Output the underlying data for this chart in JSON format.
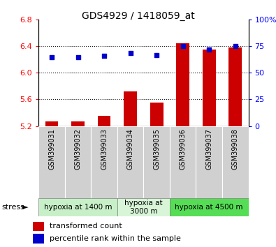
{
  "title": "GDS4929 / 1418059_at",
  "categories": [
    "GSM399031",
    "GSM399032",
    "GSM399033",
    "GSM399034",
    "GSM399035",
    "GSM399036",
    "GSM399037",
    "GSM399038"
  ],
  "bar_values": [
    5.27,
    5.27,
    5.35,
    5.72,
    5.55,
    6.45,
    6.35,
    6.38
  ],
  "scatter_values": [
    65,
    65,
    66,
    69,
    67,
    75,
    72,
    75
  ],
  "bar_color": "#cc0000",
  "scatter_color": "#0000cc",
  "ylim_left": [
    5.2,
    6.8
  ],
  "ylim_right": [
    0,
    100
  ],
  "yticks_left": [
    5.2,
    5.6,
    6.0,
    6.4,
    6.8
  ],
  "yticks_right": [
    0,
    25,
    50,
    75,
    100
  ],
  "ytick_labels_right": [
    "0",
    "25",
    "50",
    "75",
    "100%"
  ],
  "bar_baseline": 5.2,
  "grid_values": [
    5.6,
    6.0,
    6.4
  ],
  "stress_groups": [
    {
      "label": "hypoxia at 1400 m",
      "indices": [
        0,
        1,
        2
      ],
      "color": "#c8f0c8"
    },
    {
      "label": "hypoxia at\n3000 m",
      "indices": [
        3,
        4
      ],
      "color": "#d8f5d8"
    },
    {
      "label": "hypoxia at 4500 m",
      "indices": [
        5,
        6,
        7
      ],
      "color": "#55dd55"
    }
  ],
  "stress_label": "stress",
  "legend_bar_label": "transformed count",
  "legend_scatter_label": "percentile rank within the sample",
  "plot_bg_color": "#ffffff",
  "xtick_bg_color": "#d0d0d0",
  "bar_width": 0.5
}
